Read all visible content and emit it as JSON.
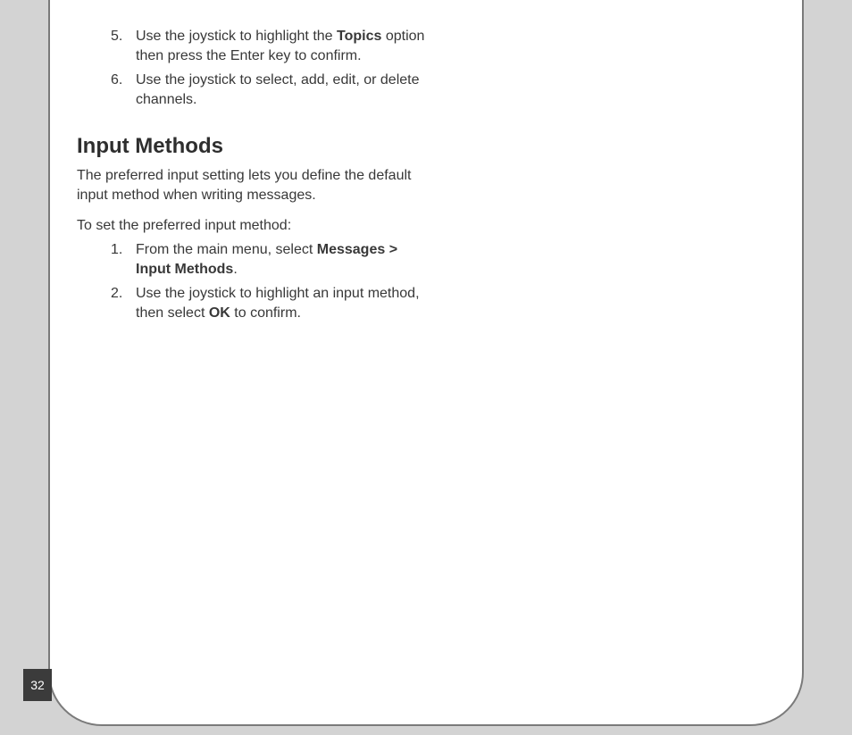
{
  "colors": {
    "page_bg": "#d3d3d3",
    "panel_bg": "#ffffff",
    "panel_border": "#7a7a7a",
    "text": "#383838",
    "heading": "#2e2e2e",
    "tab_bg": "#3b3b3b",
    "tab_text": "#ffffff"
  },
  "typography": {
    "body_fontsize": 16,
    "heading_fontsize": 24,
    "pagenum_fontsize": 14,
    "font_family": "Arial"
  },
  "upper_list": {
    "start": 5,
    "items": [
      {
        "num": "5.",
        "pre": "Use the joystick to highlight the ",
        "bold": "Topics",
        "post": " option then press the Enter key  to confirm."
      },
      {
        "num": "6.",
        "pre": "Use the joystick to select, add, edit, or delete channels.",
        "bold": "",
        "post": ""
      }
    ]
  },
  "section": {
    "heading": "Input Methods",
    "intro": "The preferred input setting lets you define the default input method when writing  messages.",
    "sub": "To set the preferred input method:",
    "steps": [
      {
        "num": "1.",
        "pre": "From the main menu, select ",
        "bold": "Messages > Input Methods",
        "post": "."
      },
      {
        "num": "2.",
        "pre": "Use the joystick to highlight an input method, then select ",
        "bold": "OK",
        "post": " to confirm."
      }
    ]
  },
  "page_number": "32"
}
